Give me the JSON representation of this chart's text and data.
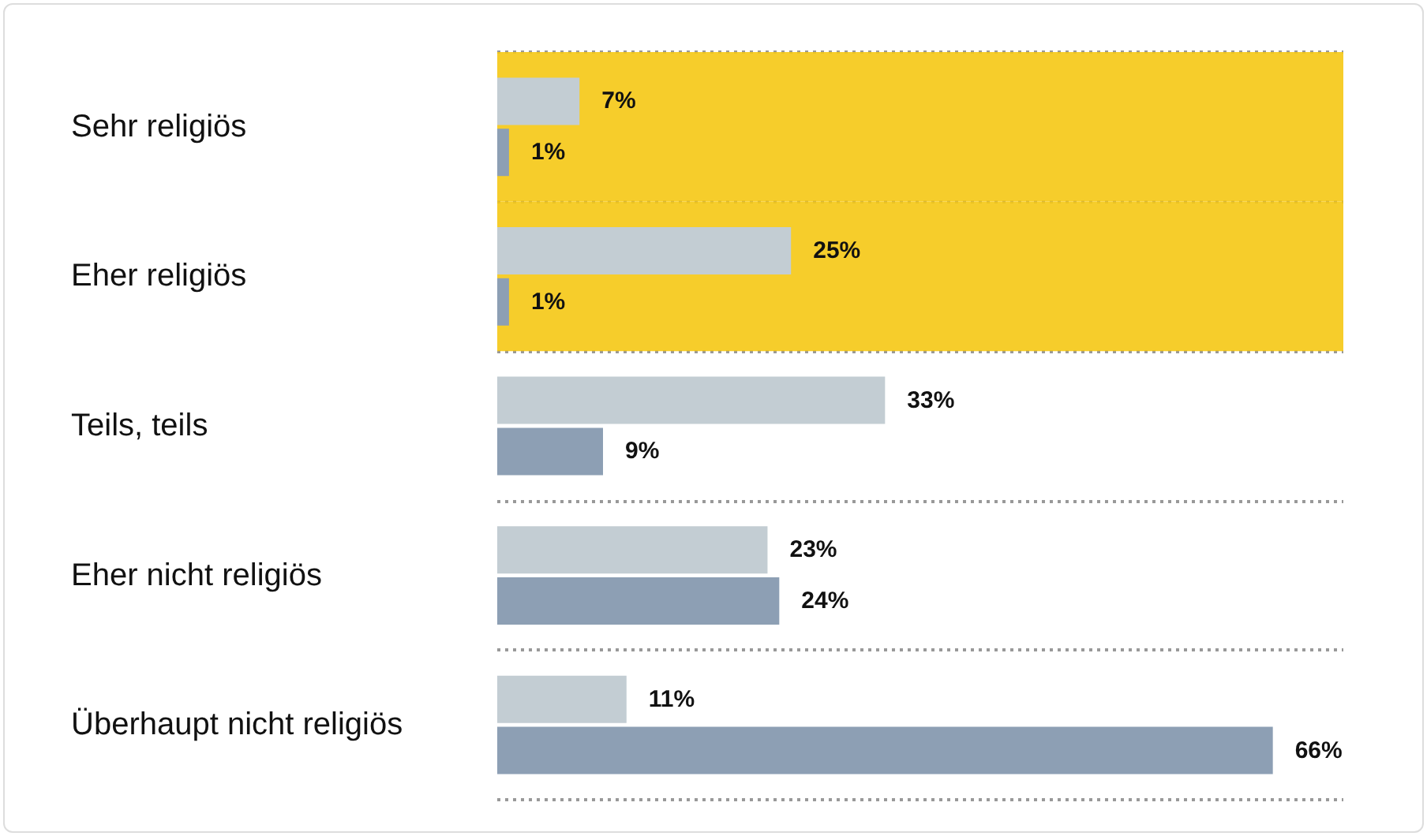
{
  "chart_data": {
    "type": "bar",
    "orientation": "horizontal",
    "categories": [
      "Sehr religiös",
      "Eher religiös",
      "Teils, teils",
      "Eher nicht religiös",
      "Überhaupt nicht religiös"
    ],
    "series": [
      {
        "color": "#c3cdd3",
        "values": [
          7,
          25,
          33,
          23,
          11
        ],
        "value_labels": [
          "7%",
          "25%",
          "33%",
          "23%",
          "11%"
        ]
      },
      {
        "color": "#8d9fb4",
        "values": [
          1,
          1,
          9,
          24,
          66
        ],
        "value_labels": [
          "1%",
          "1%",
          "9%",
          "24%",
          "66%"
        ]
      }
    ],
    "xlim": [
      0,
      72
    ],
    "tick_labels": "y",
    "grid": "y",
    "bands": [
      {
        "axis": "y",
        "from": "Sehr religiös",
        "to": "Sehr religiös",
        "color": "#f5c814"
      },
      {
        "axis": "y",
        "from": "Eher religiös",
        "to": "Eher religiös",
        "color": "#f5c814"
      }
    ]
  }
}
